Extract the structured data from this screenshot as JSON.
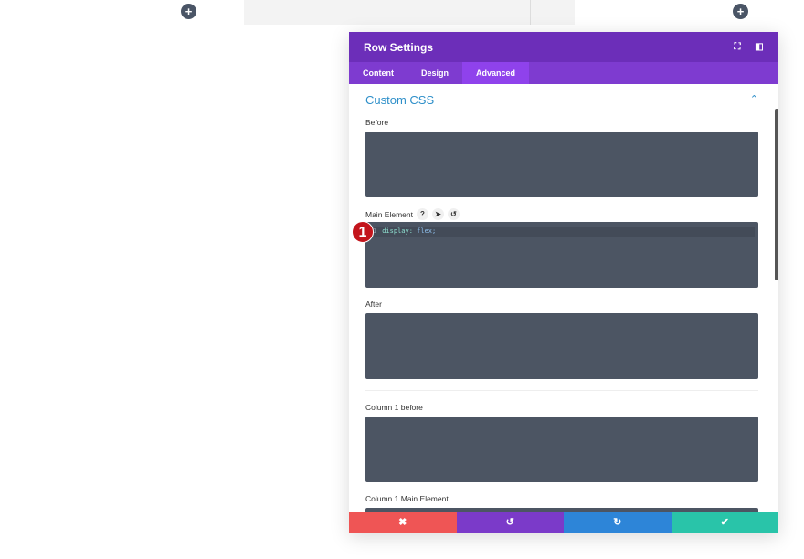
{
  "page": {
    "add_icon": "+"
  },
  "panel": {
    "title": "Row Settings",
    "header_icons": [
      "fullscreen-icon",
      "sidebar-toggle-icon"
    ],
    "tabs": [
      {
        "label": "Content"
      },
      {
        "label": "Design"
      },
      {
        "label": "Advanced"
      }
    ],
    "active_tab": "Advanced",
    "section_title": "Custom CSS",
    "fields": {
      "before": {
        "label": "Before",
        "value": ""
      },
      "main": {
        "label": "Main Element",
        "line_number": "1",
        "property": "display:",
        "value": "flex;"
      },
      "after": {
        "label": "After",
        "value": ""
      },
      "col1_before": {
        "label": "Column 1 before",
        "value": ""
      },
      "col1_main": {
        "label": "Column 1 Main Element",
        "value": ""
      }
    },
    "badge": "1",
    "footer": {
      "cancel": "✖",
      "undo": "↺",
      "redo": "↻",
      "save": "✔"
    },
    "colors": {
      "header": "#6c2eb9",
      "tabs": "#7e3bd0",
      "cancel": "#ef5555",
      "undo": "#7b3ac9",
      "redo": "#2d85d8",
      "save": "#29c4a9"
    }
  }
}
